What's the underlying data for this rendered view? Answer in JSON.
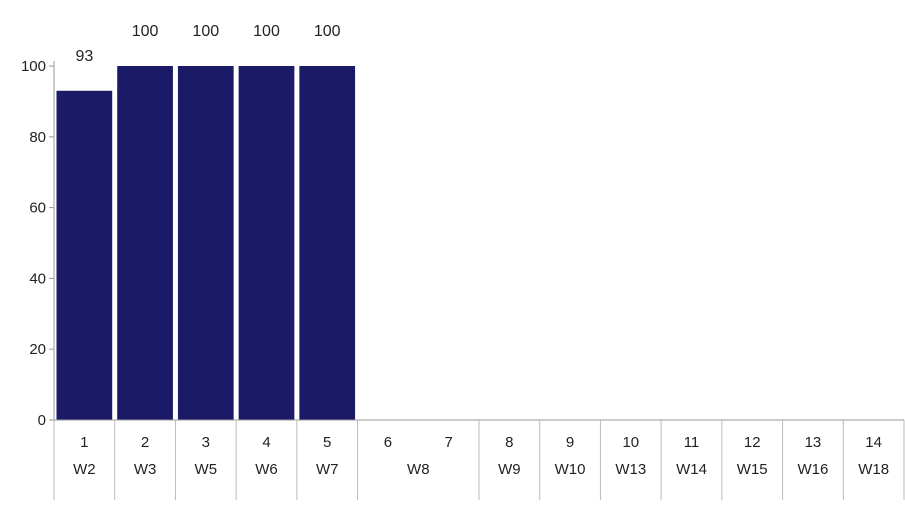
{
  "chart_data": {
    "type": "bar",
    "title": "",
    "xlabel": "",
    "ylabel": "",
    "ylim": [
      0,
      100
    ],
    "yticks": [
      0,
      20,
      40,
      60,
      80,
      100
    ],
    "grid": false,
    "legend": "none",
    "bar_color": "#1a1a66",
    "categories": [
      {
        "number": "1",
        "week": "W2",
        "value": 93
      },
      {
        "number": "2",
        "week": "W3",
        "value": 100
      },
      {
        "number": "3",
        "week": "W5",
        "value": 100
      },
      {
        "number": "4",
        "week": "W6",
        "value": 100
      },
      {
        "number": "5",
        "week": "W7",
        "value": 100
      },
      {
        "number": "6",
        "week": "",
        "value": null
      },
      {
        "number": "7",
        "week": "",
        "value": null
      },
      {
        "number": "8",
        "week": "W9",
        "value": null
      },
      {
        "number": "9",
        "week": "W10",
        "value": null
      },
      {
        "number": "10",
        "week": "W13",
        "value": null
      },
      {
        "number": "11",
        "week": "W14",
        "value": null
      },
      {
        "number": "12",
        "week": "W15",
        "value": null
      },
      {
        "number": "13",
        "week": "W16",
        "value": null
      },
      {
        "number": "14",
        "week": "W18",
        "value": null
      }
    ],
    "week_groups": [
      {
        "label": "W8",
        "span": [
          5,
          6
        ]
      }
    ]
  }
}
